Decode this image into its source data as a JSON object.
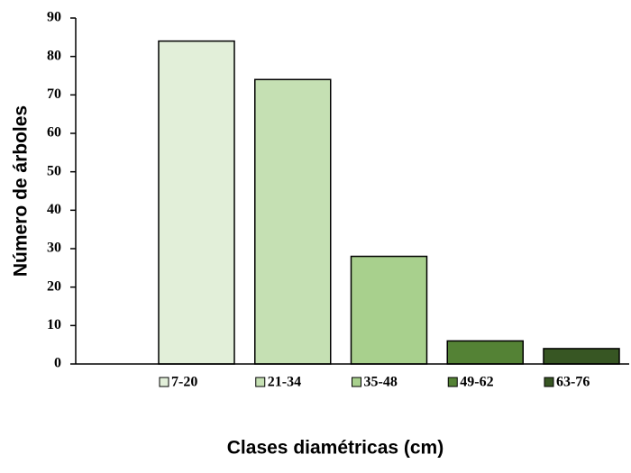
{
  "chart_data": {
    "type": "bar",
    "categories": [
      "7-20",
      "21-34",
      "35-48",
      "49-62",
      "63-76"
    ],
    "values": [
      84,
      74,
      28,
      6,
      4
    ],
    "colors": [
      "#e2efd9",
      "#c5e0b3",
      "#a8d08d",
      "#548235",
      "#375623"
    ],
    "ylim": [
      0,
      90
    ],
    "yticks": [
      0,
      10,
      20,
      30,
      40,
      50,
      60,
      70,
      80,
      90
    ],
    "y_label": "Número de árboles",
    "x_label": "Clases diamétricas (cm)"
  }
}
